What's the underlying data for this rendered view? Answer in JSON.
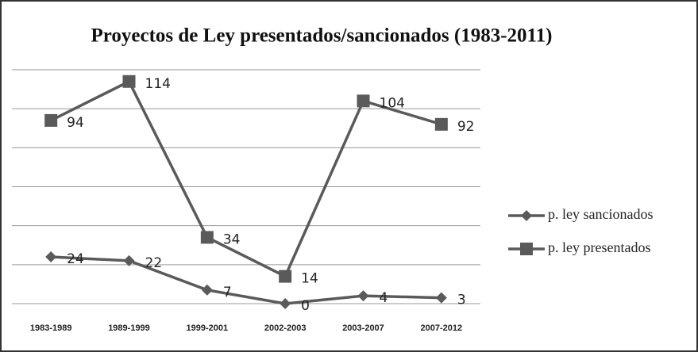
{
  "chart_data": {
    "type": "line",
    "title": "Proyectos de Ley presentados/sancionados (1983-2011)",
    "categories": [
      "1983-1989",
      "1989-1999",
      "1999-2001",
      "2002-2003",
      "2003-2007",
      "2007-2012"
    ],
    "series": [
      {
        "name": "p. ley sancionados",
        "color": "#5a5a5a",
        "marker": "diamond",
        "values": [
          24,
          22,
          7,
          0,
          4,
          3
        ]
      },
      {
        "name": "p. ley presentados",
        "color": "#5a5a5a",
        "marker": "square",
        "values": [
          94,
          114,
          34,
          14,
          104,
          92
        ]
      }
    ],
    "ylim": [
      0,
      120
    ],
    "yticks": [
      0,
      20,
      40,
      60,
      80,
      100,
      120
    ],
    "grid": true,
    "legend": "right"
  }
}
